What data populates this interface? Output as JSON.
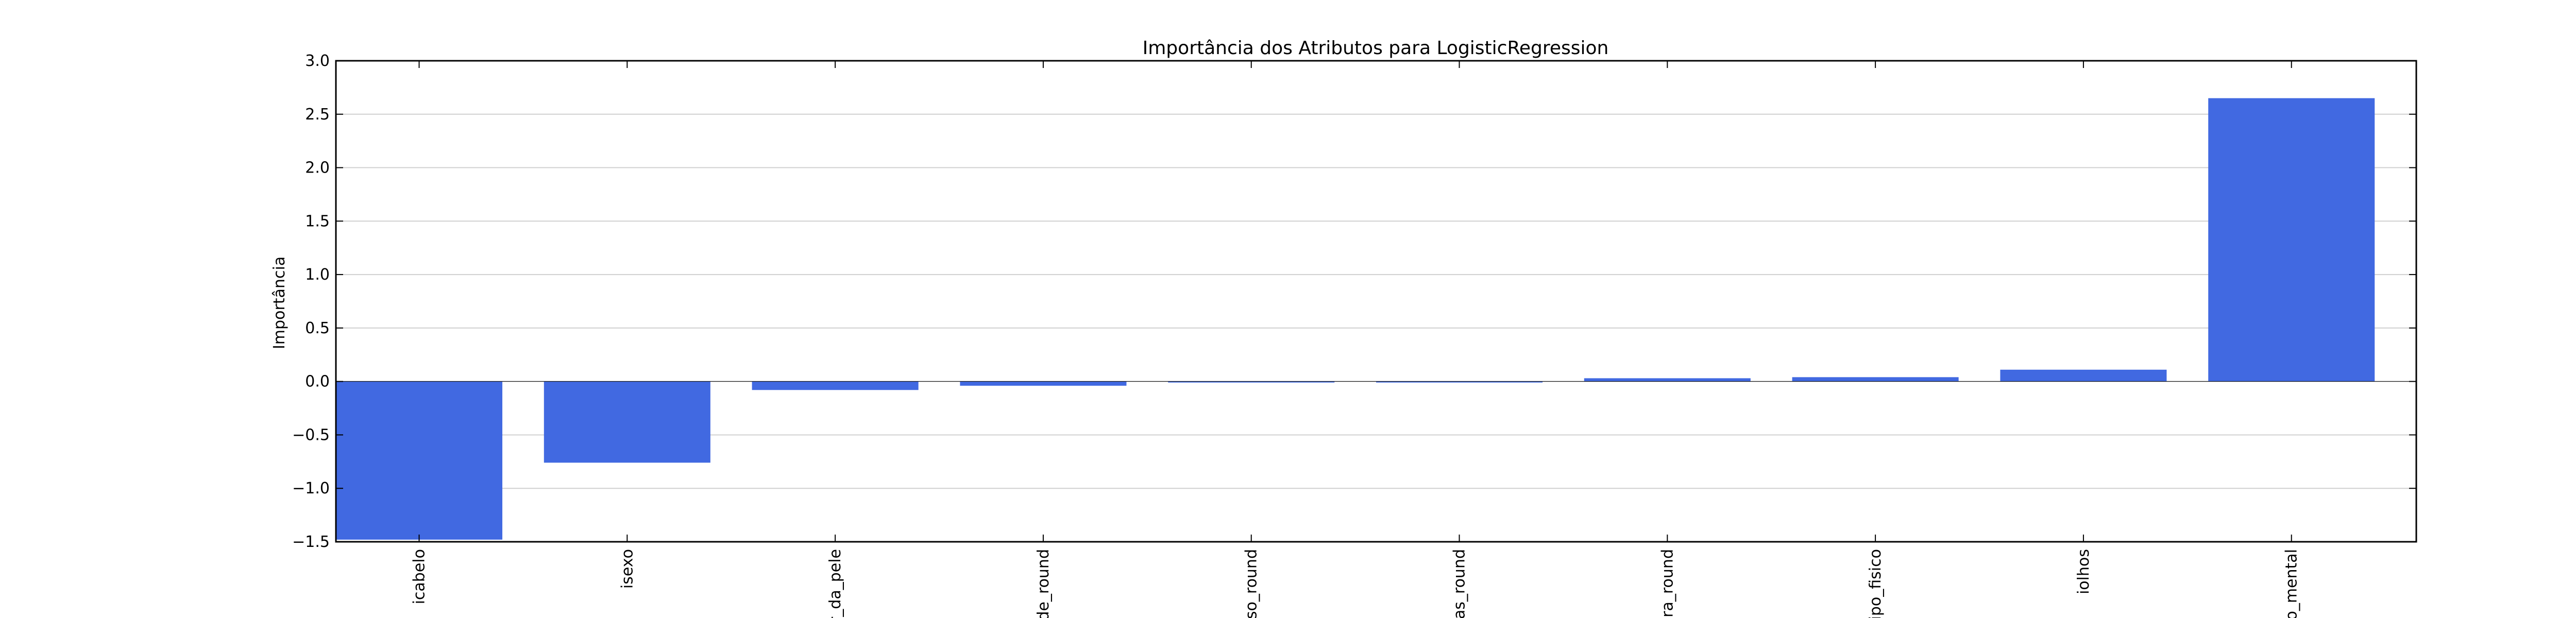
{
  "chart_data": {
    "type": "bar",
    "title": "Importância dos Atributos para LogisticRegression",
    "xlabel": "",
    "ylabel": "Importância",
    "categories": [
      "icabelo",
      "isexo",
      "r_da_pele",
      "de_round",
      "eso_round",
      "ias_round",
      "ura_round",
      "tipo_fisico",
      "iolhos",
      "o_mental"
    ],
    "values": [
      -1.48,
      -0.76,
      -0.08,
      -0.04,
      -0.01,
      -0.01,
      0.03,
      0.04,
      0.11,
      2.65
    ],
    "ylim": [
      -1.5,
      3.0
    ],
    "yticks": [
      -1.5,
      -1.0,
      -0.5,
      0.0,
      0.5,
      1.0,
      1.5,
      2.0,
      2.5,
      3.0
    ],
    "ytick_labels": [
      "−1.5",
      "−1.0",
      "−0.5",
      "0.0",
      "0.5",
      "1.0",
      "1.5",
      "2.0",
      "2.5",
      "3.0"
    ],
    "grid": "y",
    "bar_color": "#4169e1"
  }
}
